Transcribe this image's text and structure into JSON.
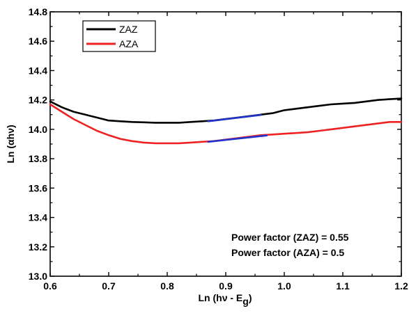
{
  "chart_data": {
    "type": "line",
    "title": "",
    "xlabel": "Ln (hν - E",
    "xlabel_sub": "g",
    "xlabel_close": ")",
    "ylabel": "Ln (αhν)",
    "xlim": [
      0.6,
      1.2
    ],
    "ylim": [
      13.0,
      14.8
    ],
    "xticks": [
      0.6,
      0.7,
      0.8,
      0.9,
      1.0,
      1.1,
      1.2
    ],
    "yticks": [
      13.0,
      13.2,
      13.4,
      13.6,
      13.8,
      14.0,
      14.2,
      14.4,
      14.6,
      14.8
    ],
    "grid": false,
    "legend_position": "top-left",
    "series": [
      {
        "name": "ZAZ",
        "color": "#000000",
        "x": [
          0.6,
          0.62,
          0.64,
          0.66,
          0.68,
          0.7,
          0.72,
          0.74,
          0.76,
          0.78,
          0.8,
          0.82,
          0.84,
          0.86,
          0.88,
          0.9,
          0.92,
          0.94,
          0.96,
          0.98,
          1.0,
          1.02,
          1.04,
          1.06,
          1.08,
          1.1,
          1.12,
          1.14,
          1.16,
          1.18,
          1.2
        ],
        "y": [
          14.19,
          14.15,
          14.12,
          14.1,
          14.08,
          14.06,
          14.055,
          14.05,
          14.048,
          14.045,
          14.045,
          14.045,
          14.05,
          14.055,
          14.06,
          14.07,
          14.08,
          14.09,
          14.1,
          14.11,
          14.13,
          14.14,
          14.15,
          14.16,
          14.17,
          14.175,
          14.18,
          14.19,
          14.2,
          14.205,
          14.21
        ]
      },
      {
        "name": "AZA",
        "color": "#ee2222",
        "x": [
          0.6,
          0.62,
          0.64,
          0.66,
          0.68,
          0.7,
          0.72,
          0.74,
          0.76,
          0.78,
          0.8,
          0.82,
          0.84,
          0.86,
          0.88,
          0.9,
          0.92,
          0.94,
          0.96,
          0.98,
          1.0,
          1.02,
          1.04,
          1.06,
          1.08,
          1.1,
          1.12,
          1.14,
          1.16,
          1.18,
          1.2
        ],
        "y": [
          14.17,
          14.12,
          14.07,
          14.03,
          13.99,
          13.96,
          13.935,
          13.92,
          13.91,
          13.905,
          13.905,
          13.905,
          13.91,
          13.915,
          13.92,
          13.93,
          13.94,
          13.95,
          13.96,
          13.965,
          13.97,
          13.975,
          13.98,
          13.99,
          14.0,
          14.01,
          14.02,
          14.03,
          14.04,
          14.05,
          14.05
        ]
      }
    ],
    "fit_lines": [
      {
        "color": "#2233cc",
        "x": [
          0.87,
          0.96
        ],
        "y": [
          14.055,
          14.098
        ]
      },
      {
        "color": "#2233cc",
        "x": [
          0.87,
          0.97
        ],
        "y": [
          13.915,
          13.958
        ]
      }
    ],
    "annotations": [
      "Power factor (ZAZ) = 0.55",
      "Power factor (AZA) = 0.5"
    ]
  }
}
